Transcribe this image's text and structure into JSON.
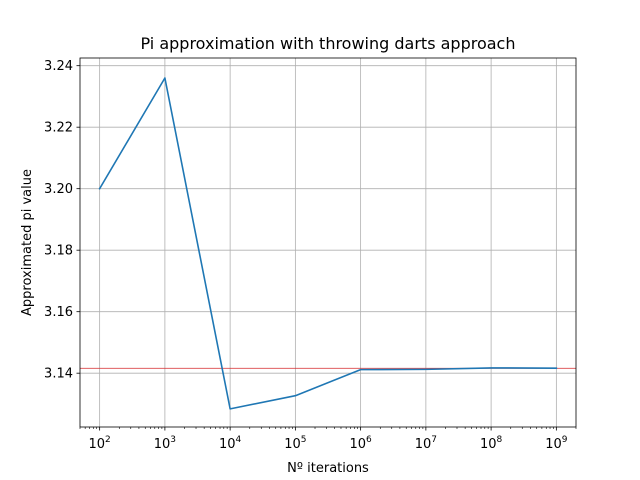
{
  "chart_data": {
    "type": "line",
    "title": "Pi approximation with throwing darts approach",
    "xlabel": "Nº iterations",
    "ylabel": "Approximated pi value",
    "xscale": "log",
    "xlim": [
      50,
      2000000000
    ],
    "ylim": [
      3.1225,
      3.2425
    ],
    "grid": true,
    "x_ticks": [
      {
        "value": 100,
        "base": "10",
        "exp": "2"
      },
      {
        "value": 1000,
        "base": "10",
        "exp": "3"
      },
      {
        "value": 10000,
        "base": "10",
        "exp": "4"
      },
      {
        "value": 100000,
        "base": "10",
        "exp": "5"
      },
      {
        "value": 1000000,
        "base": "10",
        "exp": "6"
      },
      {
        "value": 10000000,
        "base": "10",
        "exp": "7"
      },
      {
        "value": 100000000,
        "base": "10",
        "exp": "8"
      },
      {
        "value": 1000000000,
        "base": "10",
        "exp": "9"
      }
    ],
    "y_ticks": [
      "3.14",
      "3.16",
      "3.18",
      "3.20",
      "3.22",
      "3.24"
    ],
    "series": [
      {
        "color": "#1f77b4",
        "x": [
          100,
          1000,
          10000,
          100000,
          1000000,
          10000000,
          100000000,
          1000000000
        ],
        "y": [
          3.2,
          3.236,
          3.1284,
          3.13268,
          3.14116,
          3.14124,
          3.14172,
          3.14164
        ]
      }
    ],
    "reference_line": {
      "y": 3.14159,
      "color": "#d62728"
    }
  }
}
